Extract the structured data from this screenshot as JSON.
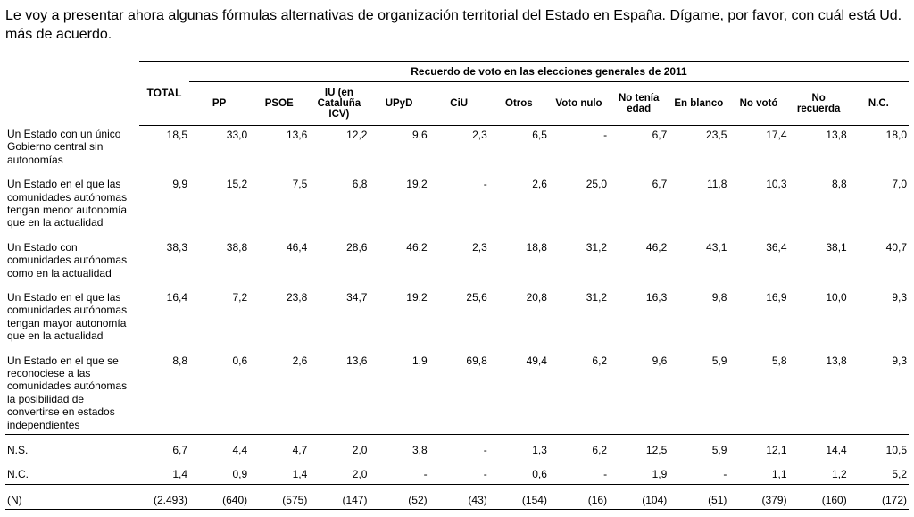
{
  "question": "Le voy a presentar ahora algunas fórmulas alternativas de organización territorial del Estado en España. Dígame, por favor, con cuál está Ud. más de acuerdo.",
  "groupHeader": "Recuerdo de voto en las elecciones generales de 2011",
  "totalLabel": "TOTAL",
  "columns": [
    "PP",
    "PSOE",
    "IU (en Cataluña ICV)",
    "UPyD",
    "CiU",
    "Otros",
    "Voto nulo",
    "No tenía edad",
    "En blanco",
    "No votó",
    "No recuerda",
    "N.C."
  ],
  "rows": [
    {
      "label": "Un Estado con un único Gobierno central sin autonomías",
      "total": "18,5",
      "vals": [
        "33,0",
        "13,6",
        "12,2",
        "9,6",
        "2,3",
        "6,5",
        "-",
        "6,7",
        "23,5",
        "17,4",
        "13,8",
        "18,0"
      ]
    },
    {
      "label": "Un Estado en el que las comunidades autónomas tengan menor autonomía que en la actualidad",
      "total": "9,9",
      "vals": [
        "15,2",
        "7,5",
        "6,8",
        "19,2",
        "-",
        "2,6",
        "25,0",
        "6,7",
        "11,8",
        "10,3",
        "8,8",
        "7,0"
      ]
    },
    {
      "label": "Un Estado con comunidades autónomas como en la actualidad",
      "total": "38,3",
      "vals": [
        "38,8",
        "46,4",
        "28,6",
        "46,2",
        "2,3",
        "18,8",
        "31,2",
        "46,2",
        "43,1",
        "36,4",
        "38,1",
        "40,7"
      ]
    },
    {
      "label": "Un Estado en el que las comunidades autónomas tengan mayor autonomía que en la actualidad",
      "total": "16,4",
      "vals": [
        "7,2",
        "23,8",
        "34,7",
        "19,2",
        "25,6",
        "20,8",
        "31,2",
        "16,3",
        "9,8",
        "16,9",
        "10,0",
        "9,3"
      ]
    },
    {
      "label": "Un Estado en el que se reconociese a las comunidades autónomas la posibilidad de convertirse en estados independientes",
      "total": "8,8",
      "vals": [
        "0,6",
        "2,6",
        "13,6",
        "1,9",
        "69,8",
        "49,4",
        "6,2",
        "9,6",
        "5,9",
        "5,8",
        "13,8",
        "9,3"
      ]
    },
    {
      "label": "N.S.",
      "total": "6,7",
      "vals": [
        "4,4",
        "4,7",
        "2,0",
        "3,8",
        "-",
        "1,3",
        "6,2",
        "12,5",
        "5,9",
        "12,1",
        "14,4",
        "10,5"
      ]
    },
    {
      "label": "N.C.",
      "total": "1,4",
      "vals": [
        "0,9",
        "1,4",
        "2,0",
        "-",
        "-",
        "0,6",
        "-",
        "1,9",
        "-",
        "1,1",
        "1,2",
        "5,2"
      ]
    },
    {
      "label": "(N)",
      "total": "(2.493)",
      "vals": [
        "(640)",
        "(575)",
        "(147)",
        "(52)",
        "(43)",
        "(154)",
        "(16)",
        "(104)",
        "(51)",
        "(379)",
        "(160)",
        "(172)"
      ]
    }
  ]
}
